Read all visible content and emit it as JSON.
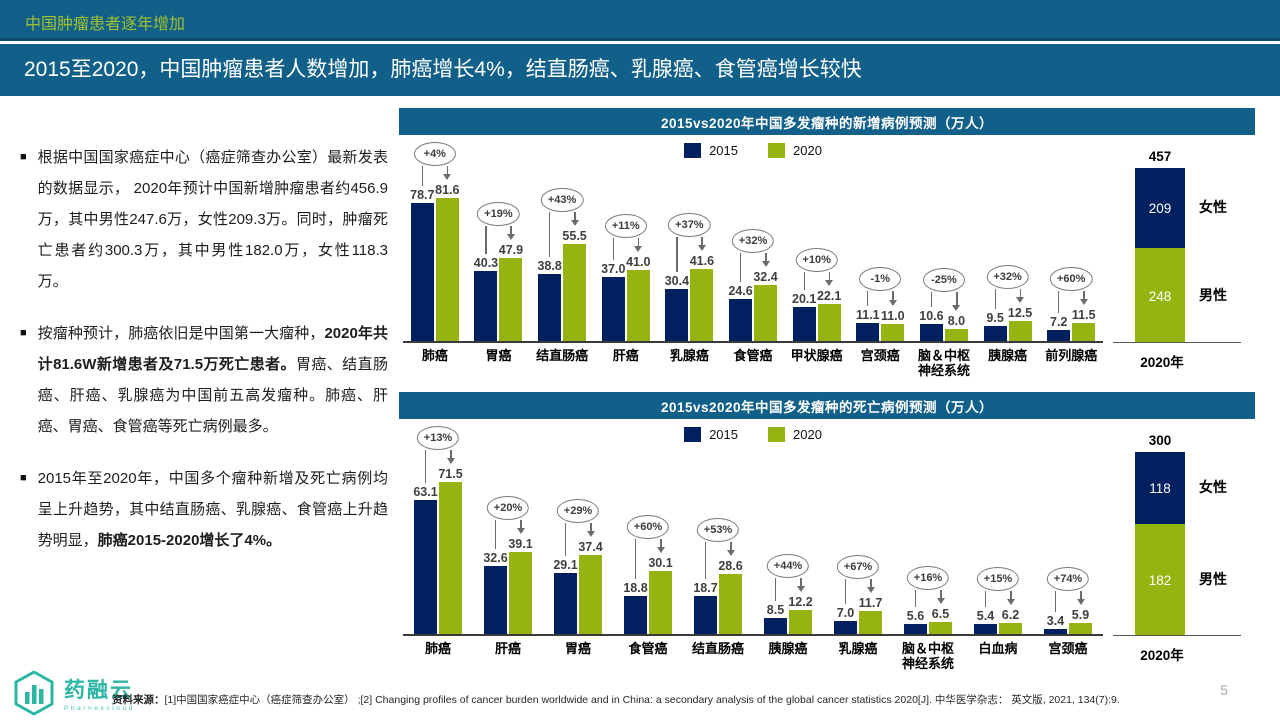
{
  "slide": {
    "kicker": "中国肿瘤患者逐年增加",
    "title": "2015至2020，中国肿瘤患者人数增加，肺癌增长4%，结直肠癌、乳腺癌、食管癌增长较快",
    "page_number": "5"
  },
  "colors": {
    "teal_band": "#11608A",
    "navy_2015": "#002060",
    "green_2020": "#96B40F",
    "kicker_text": "#A3C02E",
    "bubble_border": "#7A7A7A",
    "logo_teal": "#2BB5A3"
  },
  "bullets": [
    {
      "segments": [
        {
          "text": "根据中国国家癌症中心（癌症筛查办公室）最新发表的数据显示， 2020年预计中国新增肿瘤患者约456.9万，其中男性247.6万，女性209.3万。同时，肿瘤死亡患者约300.3万，其中男性182.0万，女性118.3万。",
          "bold": false
        }
      ]
    },
    {
      "segments": [
        {
          "text": "按瘤种预计，肺癌依旧是中国第一大瘤种，",
          "bold": false
        },
        {
          "text": "2020年共计81.6W新增患者及71.5万死亡患者。",
          "bold": true
        },
        {
          "text": "胃癌、结直肠癌、肝癌、乳腺癌为中国前五高发瘤种。肺癌、肝癌、胃癌、食管癌等死亡病例最多。",
          "bold": false
        }
      ]
    },
    {
      "segments": [
        {
          "text": "2015年至2020年，中国多个瘤种新增及死亡病例均呈上升趋势，其中结直肠癌、乳腺癌、食管癌上升趋势明显，",
          "bold": false
        },
        {
          "text": "肺癌2015-2020增长了4%。",
          "bold": true
        }
      ]
    }
  ],
  "chart_data": [
    {
      "type": "bar",
      "title": "2015vs2020年中国多发瘤种的新增病例预测（万人）",
      "legend": [
        "2015",
        "2020"
      ],
      "legend_position": "top-center",
      "grid": false,
      "ylim": [
        0,
        90
      ],
      "categories": [
        "肺癌",
        "胃癌",
        "结直肠癌",
        "肝癌",
        "乳腺癌",
        "食管癌",
        "甲状腺癌",
        "宫颈癌",
        "脑＆中枢\n神经系统",
        "胰腺癌",
        "前列腺癌"
      ],
      "series": [
        {
          "name": "2015",
          "values": [
            "78.7",
            "40.3",
            "38.8",
            "37.0",
            "30.4",
            "24.6",
            "20.1",
            "11.1",
            "10.6",
            "9.5",
            "7.2"
          ]
        },
        {
          "name": "2020",
          "values": [
            "81.6",
            "47.9",
            "55.5",
            "41.0",
            "41.6",
            "32.4",
            "22.1",
            "11.0",
            "8.0",
            "12.5",
            "11.5"
          ]
        }
      ],
      "growth_annotations": [
        "+4%",
        "+19%",
        "+43%",
        "+11%",
        "+37%",
        "+32%",
        "+10%",
        "-1%",
        "-25%",
        "+32%",
        "+60%"
      ],
      "stacked_total_bar": {
        "xlabel": "2020年",
        "total": "457",
        "segments": [
          {
            "label": "女性",
            "value": 209,
            "color_key": "navy_2015"
          },
          {
            "label": "男性",
            "value": 248,
            "color_key": "green_2020"
          }
        ]
      }
    },
    {
      "type": "bar",
      "title": "2015vs2020年中国多发瘤种的死亡病例预测（万人）",
      "legend": [
        "2015",
        "2020"
      ],
      "legend_position": "top-center",
      "grid": false,
      "ylim": [
        0,
        80
      ],
      "categories": [
        "肺癌",
        "肝癌",
        "胃癌",
        "食管癌",
        "结直肠癌",
        "胰腺癌",
        "乳腺癌",
        "脑＆中枢\n神经系统",
        "白血病",
        "宫颈癌"
      ],
      "series": [
        {
          "name": "2015",
          "values": [
            "63.1",
            "32.6",
            "29.1",
            "18.8",
            "18.7",
            "8.5",
            "7.0",
            "5.6",
            "5.4",
            "3.4"
          ]
        },
        {
          "name": "2020",
          "values": [
            "71.5",
            "39.1",
            "37.4",
            "30.1",
            "28.6",
            "12.2",
            "11.7",
            "6.5",
            "6.2",
            "5.9"
          ]
        }
      ],
      "growth_annotations": [
        "+13%",
        "+20%",
        "+29%",
        "+60%",
        "+53%",
        "+44%",
        "+67%",
        "+16%",
        "+15%",
        "+74%"
      ],
      "stacked_total_bar": {
        "xlabel": "2020年",
        "total": "300",
        "segments": [
          {
            "label": "女性",
            "value": 118,
            "color_key": "navy_2015"
          },
          {
            "label": "男性",
            "value": 182,
            "color_key": "green_2020"
          }
        ]
      }
    }
  ],
  "footer": {
    "source_label": "资料来源：",
    "source_text": "[1]中国国家癌症中心（癌症筛查办公室） ;[2] Changing profiles of cancer burden worldwide and in China: a secondary analysis of the global cancer statistics 2020[J]. 中华医学杂志： 英文版, 2021, 134(7):9.",
    "logo_text": "药融云",
    "logo_subtext": "Pharnexcloud"
  }
}
